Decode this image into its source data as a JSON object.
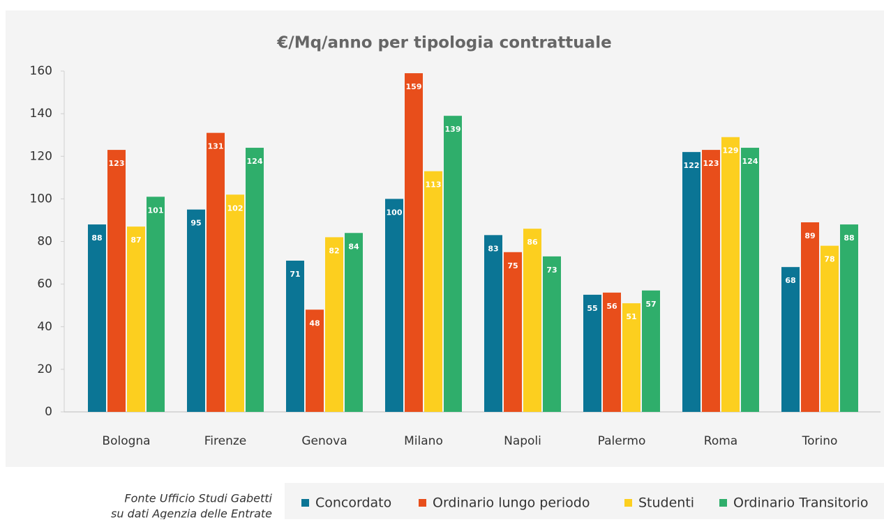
{
  "chart_data": {
    "type": "bar",
    "title": "€/Mq/anno per tipologia contrattuale",
    "categories": [
      "Bologna",
      "Firenze",
      "Genova",
      "Milano",
      "Napoli",
      "Palermo",
      "Roma",
      "Torino"
    ],
    "series": [
      {
        "name": "Concordato",
        "color": "#0b7595",
        "values": [
          88,
          95,
          71,
          100,
          83,
          55,
          122,
          68
        ]
      },
      {
        "name": "Ordinario lungo periodo",
        "color": "#e84e1b",
        "values": [
          123,
          131,
          48,
          159,
          75,
          56,
          123,
          89
        ]
      },
      {
        "name": "Studenti",
        "color": "#fccf1f",
        "values": [
          87,
          102,
          82,
          113,
          86,
          51,
          129,
          78
        ]
      },
      {
        "name": "Ordinario Transitorio",
        "color": "#2fae6b",
        "values": [
          101,
          124,
          84,
          139,
          73,
          57,
          124,
          88
        ]
      }
    ],
    "ylim": [
      0,
      160
    ],
    "yticks": [
      0,
      20,
      40,
      60,
      80,
      100,
      120,
      140,
      160
    ],
    "grid": false,
    "legend": "bottom",
    "source": [
      "Fonte Ufficio Studi Gabetti",
      "su dati Agenzia delle Entrate"
    ]
  }
}
